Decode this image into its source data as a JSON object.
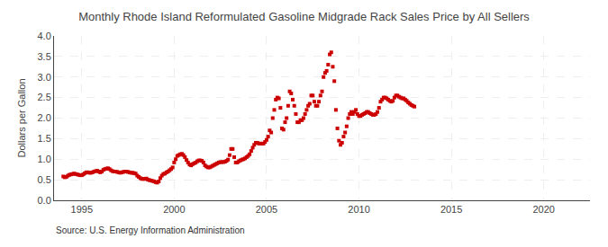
{
  "chart_data": {
    "type": "scatter",
    "title": "Monthly Rhode Island Reformulated Gasoline Midgrade Rack Sales Price by All Sellers",
    "ylabel": "Dollars per Gallon",
    "source": "Source: U.S. Energy Information Administration",
    "color": "#cc0000",
    "marker": "square",
    "grid": true,
    "xlim": [
      1993.5,
      2022.5
    ],
    "ylim": [
      0.0,
      4.0
    ],
    "xticks": [
      1995,
      2000,
      2005,
      2010,
      2015,
      2020
    ],
    "yticks": [
      {
        "value": 0.0,
        "label": "0.0"
      },
      0.5,
      {
        "value": 1.0,
        "label": "1.0"
      },
      1.5,
      {
        "value": 2.0,
        "label": "2.0"
      },
      2.5,
      {
        "value": 3.0,
        "label": "3.0"
      },
      3.5,
      {
        "value": 4.0,
        "label": "4.0"
      }
    ],
    "x": [
      1994.0,
      1994.083,
      1994.167,
      1994.25,
      1994.333,
      1994.417,
      1994.5,
      1994.583,
      1994.667,
      1994.75,
      1994.833,
      1994.917,
      1995.0,
      1995.083,
      1995.167,
      1995.25,
      1995.333,
      1995.417,
      1995.5,
      1995.583,
      1995.667,
      1995.75,
      1995.833,
      1995.917,
      1996.0,
      1996.083,
      1996.167,
      1996.25,
      1996.333,
      1996.417,
      1996.5,
      1996.583,
      1996.667,
      1996.75,
      1996.833,
      1996.917,
      1997.0,
      1997.083,
      1997.167,
      1997.25,
      1997.333,
      1997.417,
      1997.5,
      1997.583,
      1997.667,
      1997.75,
      1997.833,
      1997.917,
      1998.0,
      1998.083,
      1998.167,
      1998.25,
      1998.333,
      1998.417,
      1998.5,
      1998.583,
      1998.667,
      1998.75,
      1998.833,
      1998.917,
      1999.0,
      1999.083,
      1999.167,
      1999.25,
      1999.333,
      1999.417,
      1999.5,
      1999.583,
      1999.667,
      1999.75,
      1999.833,
      1999.917,
      2000.0,
      2000.083,
      2000.167,
      2000.25,
      2000.333,
      2000.417,
      2000.5,
      2000.583,
      2000.667,
      2000.75,
      2000.833,
      2000.917,
      2001.0,
      2001.083,
      2001.167,
      2001.25,
      2001.333,
      2001.417,
      2001.5,
      2001.583,
      2001.667,
      2001.75,
      2001.833,
      2001.917,
      2002.0,
      2002.083,
      2002.167,
      2002.25,
      2002.333,
      2002.417,
      2002.5,
      2002.583,
      2002.667,
      2002.75,
      2002.833,
      2002.917,
      2003.0,
      2003.083,
      2003.167,
      2003.25,
      2003.333,
      2003.417,
      2003.5,
      2003.583,
      2003.667,
      2003.75,
      2003.833,
      2003.917,
      2004.0,
      2004.083,
      2004.167,
      2004.25,
      2004.333,
      2004.417,
      2004.5,
      2004.583,
      2004.667,
      2004.75,
      2004.833,
      2004.917,
      2005.0,
      2005.083,
      2005.167,
      2005.25,
      2005.333,
      2005.417,
      2005.5,
      2005.583,
      2005.667,
      2005.75,
      2005.833,
      2005.917,
      2006.0,
      2006.083,
      2006.167,
      2006.25,
      2006.333,
      2006.417,
      2006.5,
      2006.583,
      2006.667,
      2006.75,
      2006.833,
      2006.917,
      2007.0,
      2007.083,
      2007.167,
      2007.25,
      2007.333,
      2007.417,
      2007.5,
      2007.583,
      2007.667,
      2007.75,
      2007.833,
      2007.917,
      2008.0,
      2008.083,
      2008.167,
      2008.25,
      2008.333,
      2008.417,
      2008.5,
      2008.583,
      2008.667,
      2008.75,
      2008.833,
      2008.917,
      2009.0,
      2009.083,
      2009.167,
      2009.25,
      2009.333,
      2009.417,
      2009.5,
      2009.583,
      2009.667,
      2009.75,
      2009.833,
      2009.917,
      2010.0,
      2010.083,
      2010.167,
      2010.25,
      2010.333,
      2010.417,
      2010.5,
      2010.583,
      2010.667,
      2010.75,
      2010.833,
      2010.917,
      2011.0,
      2011.083,
      2011.167,
      2011.25,
      2011.333,
      2011.417,
      2011.5,
      2011.583,
      2011.667,
      2011.75,
      2011.833,
      2011.917,
      2012.0,
      2012.083,
      2012.167,
      2012.25,
      2012.333,
      2012.417,
      2012.5,
      2012.583,
      2012.667,
      2012.75,
      2012.833,
      2012.917,
      2013.0
    ],
    "values": [
      0.58,
      0.56,
      0.57,
      0.6,
      0.62,
      0.63,
      0.64,
      0.65,
      0.64,
      0.63,
      0.62,
      0.61,
      0.61,
      0.63,
      0.66,
      0.68,
      0.68,
      0.67,
      0.67,
      0.68,
      0.7,
      0.71,
      0.72,
      0.7,
      0.68,
      0.7,
      0.74,
      0.76,
      0.77,
      0.78,
      0.76,
      0.73,
      0.71,
      0.7,
      0.7,
      0.69,
      0.68,
      0.67,
      0.68,
      0.69,
      0.7,
      0.7,
      0.69,
      0.68,
      0.67,
      0.67,
      0.66,
      0.65,
      0.6,
      0.57,
      0.54,
      0.52,
      0.52,
      0.52,
      0.53,
      0.5,
      0.49,
      0.48,
      0.47,
      0.46,
      0.44,
      0.43,
      0.46,
      0.54,
      0.6,
      0.64,
      0.65,
      0.68,
      0.7,
      0.73,
      0.76,
      0.8,
      0.92,
      1.0,
      1.08,
      1.1,
      1.12,
      1.13,
      1.1,
      1.05,
      0.98,
      0.92,
      0.87,
      0.85,
      0.88,
      0.9,
      0.92,
      0.95,
      0.97,
      0.97,
      0.96,
      0.92,
      0.85,
      0.82,
      0.8,
      0.8,
      0.82,
      0.84,
      0.86,
      0.88,
      0.9,
      0.92,
      0.93,
      0.93,
      0.93,
      0.94,
      0.96,
      0.99,
      1.1,
      1.25,
      1.25,
      1.05,
      0.92,
      0.92,
      0.95,
      0.97,
      0.99,
      1.0,
      1.02,
      1.05,
      1.08,
      1.12,
      1.2,
      1.28,
      1.35,
      1.4,
      1.4,
      1.38,
      1.38,
      1.38,
      1.38,
      1.42,
      1.47,
      1.55,
      1.7,
      1.65,
      2.0,
      2.2,
      2.45,
      2.5,
      2.48,
      2.25,
      1.75,
      1.72,
      1.9,
      2.0,
      2.3,
      2.65,
      2.6,
      2.45,
      2.3,
      2.1,
      1.9,
      1.9,
      1.95,
      1.95,
      2.0,
      2.1,
      2.2,
      2.3,
      2.35,
      2.55,
      2.55,
      2.4,
      2.3,
      2.3,
      2.4,
      2.55,
      2.65,
      3.0,
      3.1,
      3.15,
      3.3,
      3.55,
      3.6,
      3.25,
      2.9,
      2.2,
      1.75,
      1.45,
      1.35,
      1.4,
      1.55,
      1.65,
      1.8,
      2.0,
      2.1,
      2.15,
      2.1,
      2.15,
      2.2,
      2.1,
      2.05,
      2.05,
      2.08,
      2.1,
      2.12,
      2.15,
      2.15,
      2.12,
      2.1,
      2.08,
      2.08,
      2.1,
      2.15,
      2.25,
      2.4,
      2.45,
      2.5,
      2.5,
      2.48,
      2.45,
      2.42,
      2.4,
      2.42,
      2.5,
      2.55,
      2.55,
      2.52,
      2.5,
      2.48,
      2.48,
      2.45,
      2.42,
      2.38,
      2.35,
      2.32,
      2.3,
      2.28
    ]
  }
}
